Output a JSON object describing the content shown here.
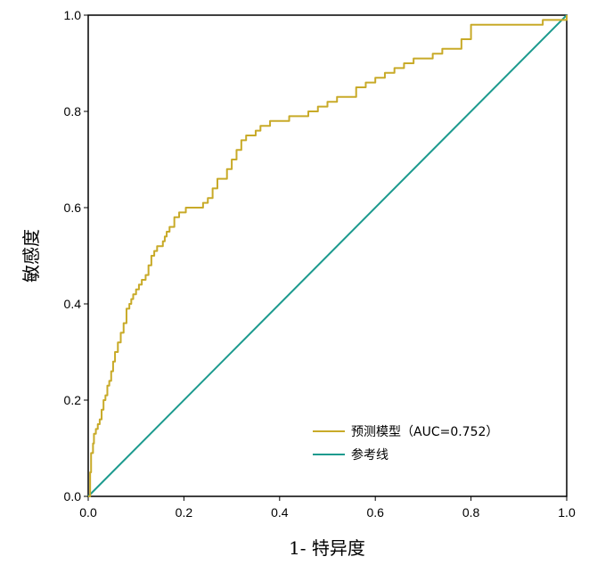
{
  "chart_data": {
    "type": "line",
    "title": "",
    "xlabel": "1- 特异度",
    "ylabel": "敏感度",
    "xlim": [
      0,
      1
    ],
    "ylim": [
      0,
      1
    ],
    "x_ticks": [
      "0.0",
      "0.2",
      "0.4",
      "0.6",
      "0.8",
      "1.0"
    ],
    "y_ticks": [
      "0.0",
      "0.2",
      "0.4",
      "0.6",
      "0.8",
      "1.0"
    ],
    "grid": false,
    "legend_position": "bottom-right",
    "series": [
      {
        "name": "预测模型（AUC=0.752）",
        "color": "#c8aa28",
        "x": [
          0.0,
          0.004,
          0.006,
          0.01,
          0.012,
          0.016,
          0.02,
          0.024,
          0.028,
          0.032,
          0.036,
          0.04,
          0.044,
          0.048,
          0.052,
          0.056,
          0.062,
          0.068,
          0.074,
          0.08,
          0.086,
          0.09,
          0.094,
          0.1,
          0.106,
          0.112,
          0.12,
          0.126,
          0.132,
          0.138,
          0.144,
          0.15,
          0.156,
          0.16,
          0.164,
          0.17,
          0.18,
          0.19,
          0.196,
          0.2,
          0.204,
          0.21,
          0.22,
          0.24,
          0.25,
          0.26,
          0.27,
          0.28,
          0.29,
          0.3,
          0.31,
          0.32,
          0.33,
          0.34,
          0.35,
          0.36,
          0.38,
          0.4,
          0.42,
          0.44,
          0.46,
          0.48,
          0.5,
          0.52,
          0.54,
          0.56,
          0.58,
          0.6,
          0.62,
          0.64,
          0.66,
          0.68,
          0.7,
          0.72,
          0.74,
          0.76,
          0.78,
          0.8,
          0.85,
          0.9,
          0.95,
          0.98,
          1.0
        ],
        "y": [
          0.0,
          0.05,
          0.09,
          0.11,
          0.13,
          0.14,
          0.15,
          0.16,
          0.18,
          0.2,
          0.21,
          0.23,
          0.24,
          0.26,
          0.28,
          0.3,
          0.32,
          0.34,
          0.36,
          0.39,
          0.4,
          0.41,
          0.42,
          0.43,
          0.44,
          0.45,
          0.46,
          0.48,
          0.5,
          0.51,
          0.52,
          0.52,
          0.53,
          0.54,
          0.55,
          0.56,
          0.58,
          0.59,
          0.59,
          0.59,
          0.6,
          0.6,
          0.6,
          0.61,
          0.62,
          0.64,
          0.66,
          0.66,
          0.68,
          0.7,
          0.72,
          0.74,
          0.75,
          0.75,
          0.76,
          0.77,
          0.78,
          0.78,
          0.79,
          0.79,
          0.8,
          0.81,
          0.82,
          0.83,
          0.83,
          0.85,
          0.86,
          0.87,
          0.88,
          0.89,
          0.9,
          0.91,
          0.91,
          0.92,
          0.93,
          0.93,
          0.95,
          0.98,
          0.98,
          0.98,
          0.99,
          0.99,
          1.0
        ]
      },
      {
        "name": "参考线",
        "color": "#1c9a8e",
        "x": [
          0,
          1
        ],
        "y": [
          0,
          1
        ]
      }
    ]
  }
}
